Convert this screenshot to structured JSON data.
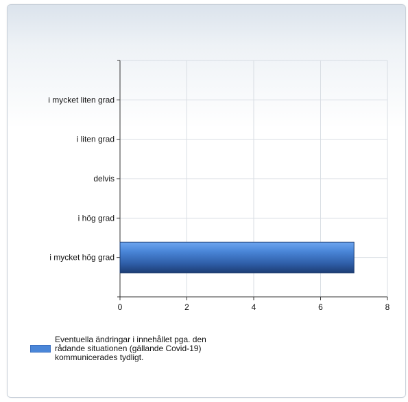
{
  "chart_data": {
    "type": "bar",
    "orientation": "horizontal",
    "title": "",
    "xlabel": "",
    "ylabel": "",
    "categories": [
      "i mycket liten grad",
      "i liten grad",
      "delvis",
      "i hög grad",
      "i mycket hög grad"
    ],
    "series": [
      {
        "name": "Eventuella ändringar i innehållet pga. den rådande situationen (gällande Covid-19) kommunicerades tydligt.",
        "values": [
          0,
          0,
          0,
          0,
          7
        ],
        "color": "#4a86d8"
      }
    ],
    "xlim": [
      0,
      8
    ],
    "xticks": [
      0,
      2,
      4,
      6,
      8
    ],
    "grid": true,
    "legend_position": "bottom-left"
  }
}
